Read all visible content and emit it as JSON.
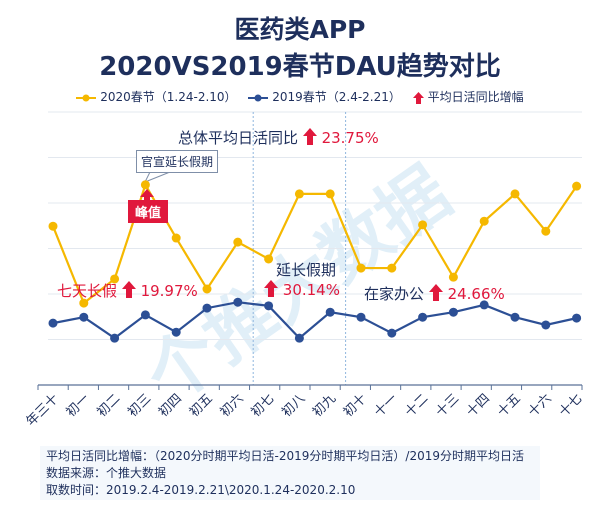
{
  "title_line1": "医药类APP",
  "title_line2": "2020VS2019春节DAU趋势对比",
  "legend": {
    "series_2020": "2020春节（1.24-2.10）",
    "series_2019": "2019春节（2.4-2.21）",
    "arrow_label": "平均日活同比增幅"
  },
  "colors": {
    "series_2020": "#f5b800",
    "series_2019": "#2c4f95",
    "accent": "#e0183c",
    "text": "#1e2f5c"
  },
  "annotations": {
    "overall_label": "总体平均日活同比",
    "overall_value": "23.75%",
    "callout": "官宣延长假期",
    "peak": "峰值",
    "seven_day_label": "七天长假",
    "seven_day_value": "19.97%",
    "extended_label": "延长假期",
    "extended_value": "30.14%",
    "wfh_label": "在家办公",
    "wfh_value": "24.66%"
  },
  "watermark": "个推大数据",
  "footer": {
    "line1": "平均日活同比增幅：（2020分时期平均日活-2019分时期平均日活）/2019分时期平均日活",
    "line2": "数据来源：个推大数据",
    "line3": "取数时间：2019.2.4-2019.2.21\\2020.1.24-2020.2.10"
  },
  "chart_data": {
    "type": "line",
    "categories": [
      "年三十",
      "初一",
      "初二",
      "初三",
      "初四",
      "初五",
      "初六",
      "初七",
      "初八",
      "初九",
      "初十",
      "十一",
      "十二",
      "十三",
      "十四",
      "十五",
      "十六",
      "十七"
    ],
    "series": [
      {
        "name": "2020春节（1.24-2.10）",
        "color": "#f5b800",
        "values": [
          3.49,
          1.8,
          2.33,
          4.4,
          3.23,
          2.11,
          3.14,
          2.77,
          4.2,
          4.2,
          2.57,
          2.57,
          3.52,
          2.37,
          3.6,
          4.2,
          3.38,
          4.37
        ]
      },
      {
        "name": "2019春节（2.4-2.21）",
        "color": "#2c4f95",
        "values": [
          1.36,
          1.49,
          1.03,
          1.54,
          1.16,
          1.69,
          1.82,
          1.74,
          1.03,
          1.6,
          1.49,
          1.14,
          1.49,
          1.6,
          1.76,
          1.49,
          1.32,
          1.47
        ]
      }
    ],
    "ylim": [
      0,
      6
    ],
    "y_tick_labels": false,
    "grid": true,
    "period_dividers_after": [
      "初六",
      "初九"
    ],
    "legend_position": "top"
  }
}
